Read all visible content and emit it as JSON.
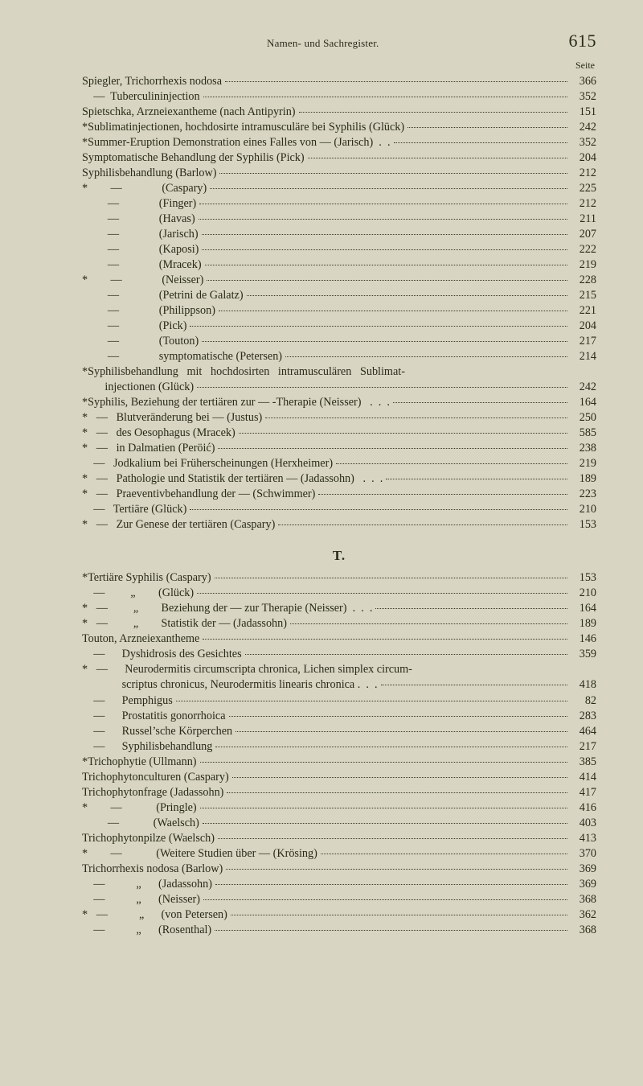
{
  "header": {
    "running_title": "Namen- und Sachregister.",
    "page_number": "615",
    "seite_label": "Seite"
  },
  "section_T_label": "T.",
  "entries_top": [
    {
      "t": "Spiegler, Trichorrhexis nodosa",
      "p": "366"
    },
    {
      "t": "    —  Tuberculininjection",
      "p": "352"
    },
    {
      "t": "Spietschka, Arzneiexantheme (nach Antipyrin)",
      "p": "151"
    },
    {
      "t": "*Sublimatinjectionen, hochdosirte intramusculäre bei Syphilis (Glück)",
      "p": "242"
    },
    {
      "t": "*Summer-Eruption Demonstration eines Falles von — (Jarisch)  .  .",
      "p": "352"
    },
    {
      "t": "Symptomatische Behandlung der Syphilis (Pick)",
      "p": "204"
    },
    {
      "t": "Syphilisbehandlung (Barlow)",
      "p": "212"
    },
    {
      "t": "*        —              (Caspary)",
      "p": "225"
    },
    {
      "t": "         —              (Finger)",
      "p": "212"
    },
    {
      "t": "         —              (Havas)",
      "p": "211"
    },
    {
      "t": "         —              (Jarisch)",
      "p": "207"
    },
    {
      "t": "         —              (Kaposi)",
      "p": "222"
    },
    {
      "t": "         —              (Mracek)",
      "p": "219"
    },
    {
      "t": "*        —              (Neisser)",
      "p": "228"
    },
    {
      "t": "         —              (Petrini de Galatz)",
      "p": "215"
    },
    {
      "t": "         —              (Philippson)",
      "p": "221"
    },
    {
      "t": "         —              (Pick)",
      "p": "204"
    },
    {
      "t": "         —              (Touton)",
      "p": "217"
    },
    {
      "t": "         —              symptomatische (Petersen)",
      "p": "214"
    },
    {
      "t": "*Syphilisbehandlung   mit   hochdosirten   intramusculären   Sublimat-",
      "nobreak": true
    },
    {
      "t": "        injectionen (Glück)",
      "p": "242"
    },
    {
      "t": "*Syphilis, Beziehung der tertiären zur — -Therapie (Neisser)   .  .  .",
      "p": "164"
    },
    {
      "t": "*   —   Blutveränderung bei — (Justus)",
      "p": "250"
    },
    {
      "t": "*   —   des Oesophagus (Mracek)",
      "p": "585"
    },
    {
      "t": "*   —   in Dalmatien (Peröić)",
      "p": "238"
    },
    {
      "t": "    —   Jodkalium bei Früherscheinungen (Herxheimer)",
      "p": "219"
    },
    {
      "t": "*   —   Pathologie und Statistik der tertiären — (Jadassohn)   .  .  .",
      "p": "189"
    },
    {
      "t": "*   —   Praeventivbehandlung der — (Schwimmer)",
      "p": "223"
    },
    {
      "t": "    —   Tertiäre (Glück)",
      "p": "210"
    },
    {
      "t": "*   —   Zur Genese der tertiären (Caspary)",
      "p": "153"
    }
  ],
  "entries_T": [
    {
      "t": "*Tertiäre Syphilis (Caspary)",
      "p": "153"
    },
    {
      "t": "    —         „        (Glück)",
      "p": "210"
    },
    {
      "t": "*   —         „        Beziehung der — zur Therapie (Neisser)  .  .  .",
      "p": "164"
    },
    {
      "t": "*   —         „        Statistik der — (Jadassohn)",
      "p": "189"
    },
    {
      "t": "Touton, Arzneiexantheme",
      "p": "146"
    },
    {
      "t": "    —      Dyshidrosis des Gesichtes",
      "p": "359"
    },
    {
      "t": "*   —      Neurodermitis circumscripta chronica, Lichen simplex circum-",
      "nobreak": true
    },
    {
      "t": "              scriptus chronicus, Neurodermitis linearis chronica .  .  .",
      "p": "418"
    },
    {
      "t": "    —      Pemphigus",
      "p": "82"
    },
    {
      "t": "    —      Prostatitis gonorrhoica",
      "p": "283"
    },
    {
      "t": "    —      Russel’sche Körperchen",
      "p": "464"
    },
    {
      "t": "    —      Syphilisbehandlung",
      "p": "217"
    },
    {
      "t": "*Trichophytie (Ullmann)",
      "p": "385"
    },
    {
      "t": "Trichophytonculturen (Caspary)",
      "p": "414"
    },
    {
      "t": "Trichophytonfrage (Jadassohn)",
      "p": "417"
    },
    {
      "t": "*        —            (Pringle)",
      "p": "416"
    },
    {
      "t": "         —            (Waelsch)",
      "p": "403"
    },
    {
      "t": "Trichophytonpilze (Waelsch)",
      "p": "413"
    },
    {
      "t": "*        —            (Weitere Studien über — (Krösing)",
      "p": "370"
    },
    {
      "t": "Trichorrhexis nodosa (Barlow)",
      "p": "369"
    },
    {
      "t": "    —           „      (Jadassohn)",
      "p": "369"
    },
    {
      "t": "    —           „      (Neisser)",
      "p": "368"
    },
    {
      "t": "*   —           „      (von Petersen)",
      "p": "362"
    },
    {
      "t": "    —           „      (Rosenthal)",
      "p": "368"
    }
  ]
}
